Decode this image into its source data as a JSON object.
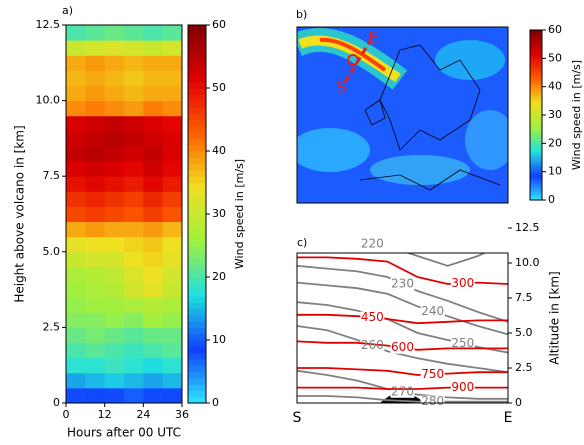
{
  "chart_data": [
    {
      "type": "heatmap",
      "panel_label": "a)",
      "xlabel": "Hours after 00 UTC",
      "ylabel": "Height above volcano in [km]",
      "xlim": [
        0,
        36
      ],
      "ylim": [
        0,
        12.5
      ],
      "xticks": [
        0,
        12,
        24,
        36
      ],
      "yticks": [
        0,
        2.5,
        {
          "value": 5,
          "label": "5.0"
        },
        7.5,
        {
          "value": 10,
          "label": "10.0"
        },
        12.5
      ],
      "xbins": [
        0,
        6,
        12,
        18,
        24,
        30,
        36
      ],
      "ybins": [
        0,
        0.5,
        1,
        1.5,
        2,
        2.5,
        3,
        3.5,
        4,
        4.5,
        5,
        5.5,
        6,
        6.5,
        7,
        7.5,
        8,
        8.5,
        9,
        9.5,
        10,
        10.5,
        11,
        11.5,
        12,
        12.5
      ],
      "z": [
        [
          8,
          9,
          8,
          7,
          8,
          9
        ],
        [
          14,
          15,
          16,
          15,
          14,
          15
        ],
        [
          18,
          18,
          19,
          18,
          17,
          18
        ],
        [
          20,
          21,
          20,
          19,
          20,
          21
        ],
        [
          22,
          23,
          22,
          21,
          22,
          22
        ],
        [
          24,
          24,
          25,
          24,
          26,
          25
        ],
        [
          25,
          26,
          26,
          27,
          28,
          27
        ],
        [
          26,
          27,
          28,
          31,
          33,
          30
        ],
        [
          27,
          28,
          29,
          32,
          34,
          31
        ],
        [
          30,
          31,
          31,
          34,
          35,
          33
        ],
        [
          33,
          34,
          34,
          35,
          36,
          34
        ],
        [
          38,
          39,
          38,
          38,
          39,
          37
        ],
        [
          45,
          46,
          45,
          44,
          46,
          44
        ],
        [
          47,
          48,
          47,
          46,
          48,
          46
        ],
        [
          50,
          51,
          50,
          49,
          51,
          49
        ],
        [
          52,
          53,
          52,
          51,
          53,
          51
        ],
        [
          54,
          55,
          54,
          53,
          54,
          52
        ],
        [
          53,
          54,
          55,
          54,
          53,
          52
        ],
        [
          52,
          53,
          54,
          53,
          52,
          51
        ],
        [
          40,
          41,
          40,
          39,
          41,
          40
        ],
        [
          38,
          39,
          38,
          37,
          38,
          38
        ],
        [
          37,
          38,
          37,
          36,
          37,
          37
        ],
        [
          38,
          39,
          38,
          37,
          38,
          38
        ],
        [
          30,
          31,
          32,
          31,
          30,
          31
        ],
        [
          20,
          21,
          22,
          21,
          20,
          21
        ]
      ],
      "colormap": [
        "#30e8ff",
        "#1040ff",
        "#20e0e0",
        "#a0f040",
        "#f0e020",
        "#ff6000",
        "#e00000",
        "#800000"
      ],
      "colorbar": {
        "label": "Wind speed in [m/s]",
        "lim": [
          0,
          60
        ],
        "ticks": [
          0,
          10,
          20,
          30,
          40,
          50,
          60
        ]
      }
    },
    {
      "type": "map",
      "panel_label": "b)",
      "section_start": "S",
      "section_end": "E",
      "colorbar": {
        "label": "Wind speed in [m/s]",
        "lim": [
          0,
          60
        ],
        "ticks": [
          0,
          10,
          20,
          30,
          40,
          50,
          60
        ]
      }
    },
    {
      "type": "contour",
      "panel_label": "c)",
      "ylabel": "Altitude in [km]",
      "categories": [
        "S",
        "E"
      ],
      "ylim": [
        0,
        12.5
      ],
      "yticks": [
        0,
        2.5,
        {
          "value": 5,
          "label": "5.0"
        },
        7.5,
        {
          "value": 10,
          "label": "10.0"
        },
        12.5
      ],
      "contours": [
        {
          "level": 220,
          "color": "#808080",
          "values": [
            11.7,
            11.6,
            11.5,
            11.2,
            10.5,
            9.8,
            10.5,
            11.5
          ]
        },
        {
          "level": 230,
          "color": "#808080",
          "values": [
            9.8,
            9.6,
            9.4,
            9.0,
            8.0,
            7.3,
            6.5,
            5.8
          ]
        },
        {
          "level": 240,
          "color": "#808080",
          "values": [
            8.6,
            8.4,
            8.2,
            7.8,
            6.9,
            6.2,
            5.5,
            4.9
          ]
        },
        {
          "level": 250,
          "color": "#808080",
          "values": [
            7.2,
            7.0,
            6.6,
            6.0,
            5.0,
            4.5,
            4.0,
            3.6
          ]
        },
        {
          "level": 260,
          "color": "#808080",
          "values": [
            5.5,
            5.2,
            4.5,
            3.7,
            3.2,
            2.8,
            2.5,
            2.2
          ]
        },
        {
          "level": 270,
          "color": "#808080",
          "values": [
            2.3,
            2.0,
            1.6,
            1.0,
            0.6,
            0.4,
            0.3,
            0.3
          ]
        },
        {
          "level": 280,
          "color": "#808080",
          "values": [
            0.5,
            0.5,
            0.4,
            0.2,
            0.1,
            0.1,
            0.1,
            0.1
          ]
        },
        {
          "level": 300,
          "color": "#e00000",
          "values": [
            10.4,
            10.4,
            10.3,
            10.1,
            9.0,
            8.5,
            8.6,
            8.5
          ]
        },
        {
          "level": 450,
          "color": "#e00000",
          "values": [
            6.3,
            6.3,
            6.2,
            6.0,
            5.7,
            5.8,
            5.9,
            5.9
          ]
        },
        {
          "level": 600,
          "color": "#e00000",
          "values": [
            4.4,
            4.3,
            4.3,
            4.1,
            3.8,
            3.9,
            3.9,
            3.9
          ]
        },
        {
          "level": 750,
          "color": "#e00000",
          "values": [
            2.5,
            2.5,
            2.4,
            2.3,
            2.0,
            2.1,
            2.2,
            2.2
          ]
        },
        {
          "level": 900,
          "color": "#e00000",
          "values": [
            1.1,
            1.1,
            1.1,
            1.0,
            1.0,
            1.1,
            1.1,
            1.1
          ]
        }
      ]
    }
  ]
}
